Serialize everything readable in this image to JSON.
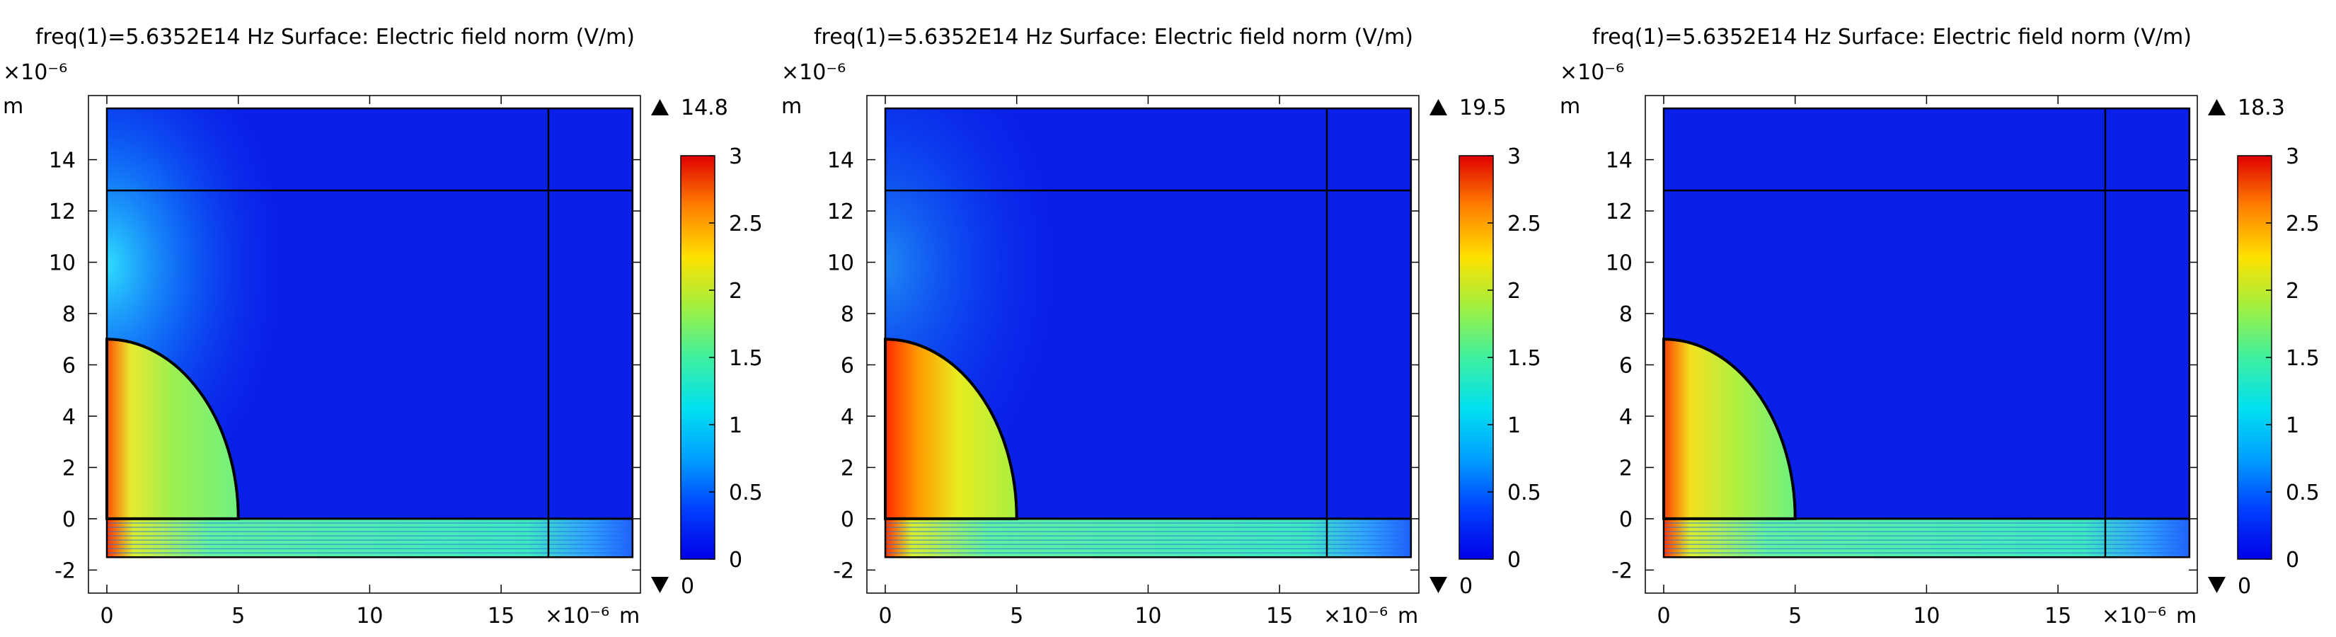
{
  "figure": {
    "panels": [
      {
        "title": "freq(1)=5.6352E14 Hz  Surface: Electric field norm (V/m)",
        "max_label": "14.8",
        "min_label": "0",
        "y_exp_label": "×10⁻⁶",
        "y_unit": "m",
        "x_exp_label": "×10⁻⁶",
        "x_unit": "m",
        "halo_strength": 1.0,
        "particle_fill": "green-yellow"
      },
      {
        "title": "freq(1)=5.6352E14 Hz  Surface: Electric field norm (V/m)",
        "max_label": "19.5",
        "min_label": "0",
        "y_exp_label": "×10⁻⁶",
        "y_unit": "m",
        "x_exp_label": "×10⁻⁶",
        "x_unit": "m",
        "halo_strength": 0.55,
        "particle_fill": "red-yellow"
      },
      {
        "title": "freq(1)=5.6352E14 Hz  Surface: Electric field norm (V/m)",
        "max_label": "18.3",
        "min_label": "0",
        "y_exp_label": "×10⁻⁶",
        "y_unit": "m",
        "x_exp_label": "×10⁻⁶",
        "x_unit": "m",
        "halo_strength": 0.0,
        "particle_fill": "yellow-green"
      }
    ]
  },
  "chart_data": {
    "type": "heatmap",
    "x_ticks": [
      0,
      5,
      10,
      15
    ],
    "y_ticks": [
      -2,
      0,
      2,
      4,
      6,
      8,
      10,
      12,
      14
    ],
    "xlim": [
      -0.7,
      20.3
    ],
    "ylim": [
      -2.9,
      16.5
    ],
    "domain": {
      "x": [
        0,
        20
      ],
      "y": [
        -1.5,
        16
      ]
    },
    "boundaries": {
      "x_vertical": 16.8,
      "y_horizontal_top": 12.8,
      "y_horizontal_bottom": 0
    },
    "particle": {
      "center_x": 0,
      "center_y": 0,
      "radius_x": 5,
      "radius_y": 7
    },
    "colorbar": {
      "range": [
        0,
        3
      ],
      "ticks": [
        0,
        0.5,
        1,
        1.5,
        2,
        2.5,
        3
      ],
      "tick_labels": [
        "0",
        "0.5",
        "1",
        "1.5",
        "2",
        "2.5",
        "3"
      ],
      "colormap": "rainbow",
      "colors": [
        "#0000e6",
        "#0040ff",
        "#00a0ff",
        "#00e0f0",
        "#40f0a0",
        "#a0f040",
        "#ffe000",
        "#ff8000",
        "#e00000"
      ]
    },
    "background_color": "#0a1fe8"
  }
}
